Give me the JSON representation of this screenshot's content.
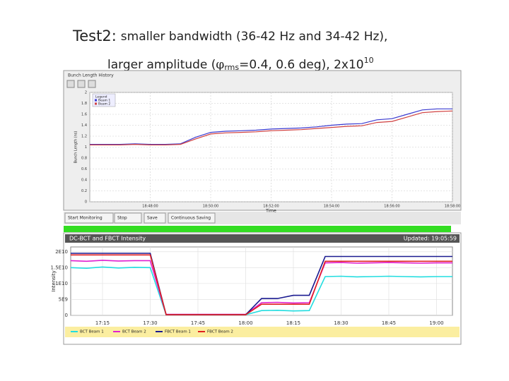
{
  "slide": {
    "title_line1": [
      "Test2:",
      "smaller bandwidth (36-42 Hz and 34-42 Hz),"
    ],
    "title_line2": [
      "larger amplitude (",
      "φ",
      "rms",
      "=0.4, 0.6 deg), 2x10",
      "10"
    ]
  },
  "ui": {
    "window_title": "Bunch Length History",
    "buttons": [
      "Start Monitoring",
      "Stop",
      "Save",
      "Continuous Saving"
    ]
  },
  "chart_data": [
    {
      "type": "line",
      "legend_title": "Legend",
      "y_label": "Bunch Length (ns)",
      "x_label": "Time",
      "categories": [
        null,
        null,
        null,
        null,
        "18:48:00",
        null,
        null,
        null,
        "18:50:00",
        null,
        null,
        null,
        "18:52:00",
        null,
        null,
        null,
        "18:54:00",
        null,
        null,
        null,
        "18:56:00",
        null,
        null,
        null,
        "18:58:00"
      ],
      "ylim": [
        0,
        2
      ],
      "yticks": [
        0,
        0.2,
        0.4,
        0.6,
        0.8,
        1,
        1.2,
        1.4,
        1.6,
        1.8,
        2
      ],
      "grid": true,
      "series": [
        {
          "name": "Beam 1",
          "color": "#3a3ad0",
          "values": [
            1.05,
            1.05,
            1.05,
            1.06,
            1.05,
            1.05,
            1.06,
            1.18,
            1.27,
            1.29,
            1.3,
            1.31,
            1.33,
            1.34,
            1.35,
            1.37,
            1.4,
            1.42,
            1.43,
            1.5,
            1.52,
            1.6,
            1.68,
            1.7,
            1.7
          ]
        },
        {
          "name": "Beam 2",
          "color": "#d04040",
          "values": [
            1.04,
            1.04,
            1.04,
            1.05,
            1.04,
            1.04,
            1.05,
            1.15,
            1.24,
            1.26,
            1.27,
            1.28,
            1.3,
            1.31,
            1.32,
            1.34,
            1.36,
            1.38,
            1.39,
            1.45,
            1.47,
            1.55,
            1.63,
            1.65,
            1.66
          ]
        }
      ]
    },
    {
      "type": "line",
      "title": "DC-BCT and FBCT Intensity",
      "updated": "Updated: 19:05:59",
      "y_label": "Intensity",
      "categories": [
        null,
        null,
        "17:15",
        null,
        null,
        "17:30",
        null,
        null,
        "17:45",
        null,
        null,
        "18:00",
        null,
        null,
        "18:15",
        null,
        null,
        "18:30",
        null,
        null,
        "18:45",
        null,
        null,
        "19:00",
        null
      ],
      "ylim": [
        0,
        21500000000
      ],
      "yticks": [
        0,
        {
          "value": 5000000000,
          "label": "5E9"
        },
        {
          "value": 10000000000,
          "label": "1E10"
        },
        {
          "value": 15000000000,
          "label": "1.5E10"
        },
        {
          "value": 20000000000,
          "label": "2E10"
        }
      ],
      "grid": true,
      "series": [
        {
          "name": "BCT Beam 1",
          "color": "#22dde0",
          "values": [
            15000000000,
            14800000000,
            15200000000,
            14900000000,
            15100000000,
            15000000000,
            200000000,
            200000000,
            200000000,
            200000000,
            200000000,
            200000000,
            1500000000,
            1600000000,
            1400000000,
            1500000000,
            12200000000,
            12300000000,
            12100000000,
            12200000000,
            12300000000,
            12200000000,
            12100000000,
            12200000000,
            12200000000
          ]
        },
        {
          "name": "BCT Beam 2",
          "color": "#e020d0",
          "values": [
            17200000000,
            17000000000,
            17300000000,
            17100000000,
            17200000000,
            17200000000,
            300000000,
            300000000,
            300000000,
            300000000,
            300000000,
            300000000,
            4000000000,
            4100000000,
            3900000000,
            4000000000,
            16500000000,
            16600000000,
            16400000000,
            16500000000,
            16600000000,
            16500000000,
            16400000000,
            16500000000,
            16500000000
          ]
        },
        {
          "name": "FBCT Beam 1",
          "color": "#1a1a90",
          "values": [
            19500000000,
            19500000000,
            19500000000,
            19500000000,
            19500000000,
            19500000000,
            200000000,
            200000000,
            200000000,
            200000000,
            200000000,
            200000000,
            5300000000,
            5300000000,
            6300000000,
            6300000000,
            18500000000,
            18500000000,
            18500000000,
            18500000000,
            18500000000,
            18500000000,
            18500000000,
            18500000000,
            18500000000
          ]
        },
        {
          "name": "FBCT Beam 2",
          "color": "#e02020",
          "values": [
            19000000000,
            19000000000,
            19000000000,
            19000000000,
            19000000000,
            19000000000,
            200000000,
            200000000,
            200000000,
            200000000,
            200000000,
            200000000,
            3500000000,
            3500000000,
            3500000000,
            3500000000,
            17000000000,
            17000000000,
            17000000000,
            17000000000,
            17000000000,
            17000000000,
            17000000000,
            17000000000,
            17000000000
          ]
        }
      ]
    }
  ]
}
